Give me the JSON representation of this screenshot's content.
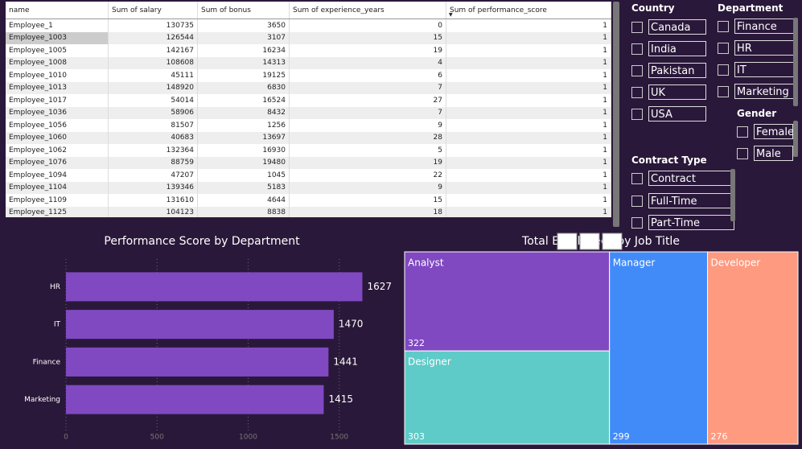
{
  "table": {
    "columns": [
      "name",
      "Sum of salary",
      "Sum of bonus",
      "Sum of experience_years",
      "Sum of performance_score"
    ],
    "rows": [
      [
        "Employee_1",
        130735,
        3650,
        0,
        1
      ],
      [
        "Employee_1003",
        126544,
        3107,
        15,
        1
      ],
      [
        "Employee_1005",
        142167,
        16234,
        19,
        1
      ],
      [
        "Employee_1008",
        108608,
        14313,
        4,
        1
      ],
      [
        "Employee_1010",
        45111,
        19125,
        6,
        1
      ],
      [
        "Employee_1013",
        148920,
        6830,
        7,
        1
      ],
      [
        "Employee_1017",
        54014,
        16524,
        27,
        1
      ],
      [
        "Employee_1036",
        58906,
        8432,
        7,
        1
      ],
      [
        "Employee_1056",
        81507,
        1256,
        9,
        1
      ],
      [
        "Employee_1060",
        40683,
        13697,
        28,
        1
      ],
      [
        "Employee_1062",
        132364,
        16930,
        5,
        1
      ],
      [
        "Employee_1076",
        88759,
        19480,
        19,
        1
      ],
      [
        "Employee_1094",
        47207,
        1045,
        22,
        1
      ],
      [
        "Employee_1104",
        139346,
        5183,
        9,
        1
      ],
      [
        "Employee_1109",
        131610,
        4644,
        15,
        1
      ],
      [
        "Employee_1125",
        104123,
        8838,
        18,
        1
      ]
    ]
  },
  "slicers": [
    {
      "title": "Country",
      "items": [
        "Canada",
        "India",
        "Pakistan",
        "UK",
        "USA"
      ]
    },
    {
      "title": "Department",
      "items": [
        "Finance",
        "HR",
        "IT",
        "Marketing"
      ]
    },
    {
      "title": "Gender",
      "items": [
        "Female",
        "Male"
      ]
    },
    {
      "title": "Contract Type",
      "items": [
        "Contract",
        "Full-Time",
        "Part-Time"
      ]
    }
  ],
  "chart_data": [
    {
      "type": "bar",
      "title": "Performance Score by Department",
      "categories": [
        "HR",
        "IT",
        "Finance",
        "Marketing"
      ],
      "values": [
        1627,
        1470,
        1441,
        1415
      ],
      "color": "#8049c2",
      "xlim": [
        0,
        1700
      ],
      "xticks": [
        0,
        500,
        1000,
        1500
      ],
      "grid": true
    },
    {
      "type": "treemap",
      "title": "Total Employees by Job Title",
      "categories": [
        "Analyst",
        "Designer",
        "Manager",
        "Developer"
      ],
      "values": [
        322,
        303,
        299,
        276
      ],
      "colors": [
        "#8049c2",
        "#5ecbc8",
        "#418bf9",
        "#fd9a80"
      ]
    }
  ]
}
